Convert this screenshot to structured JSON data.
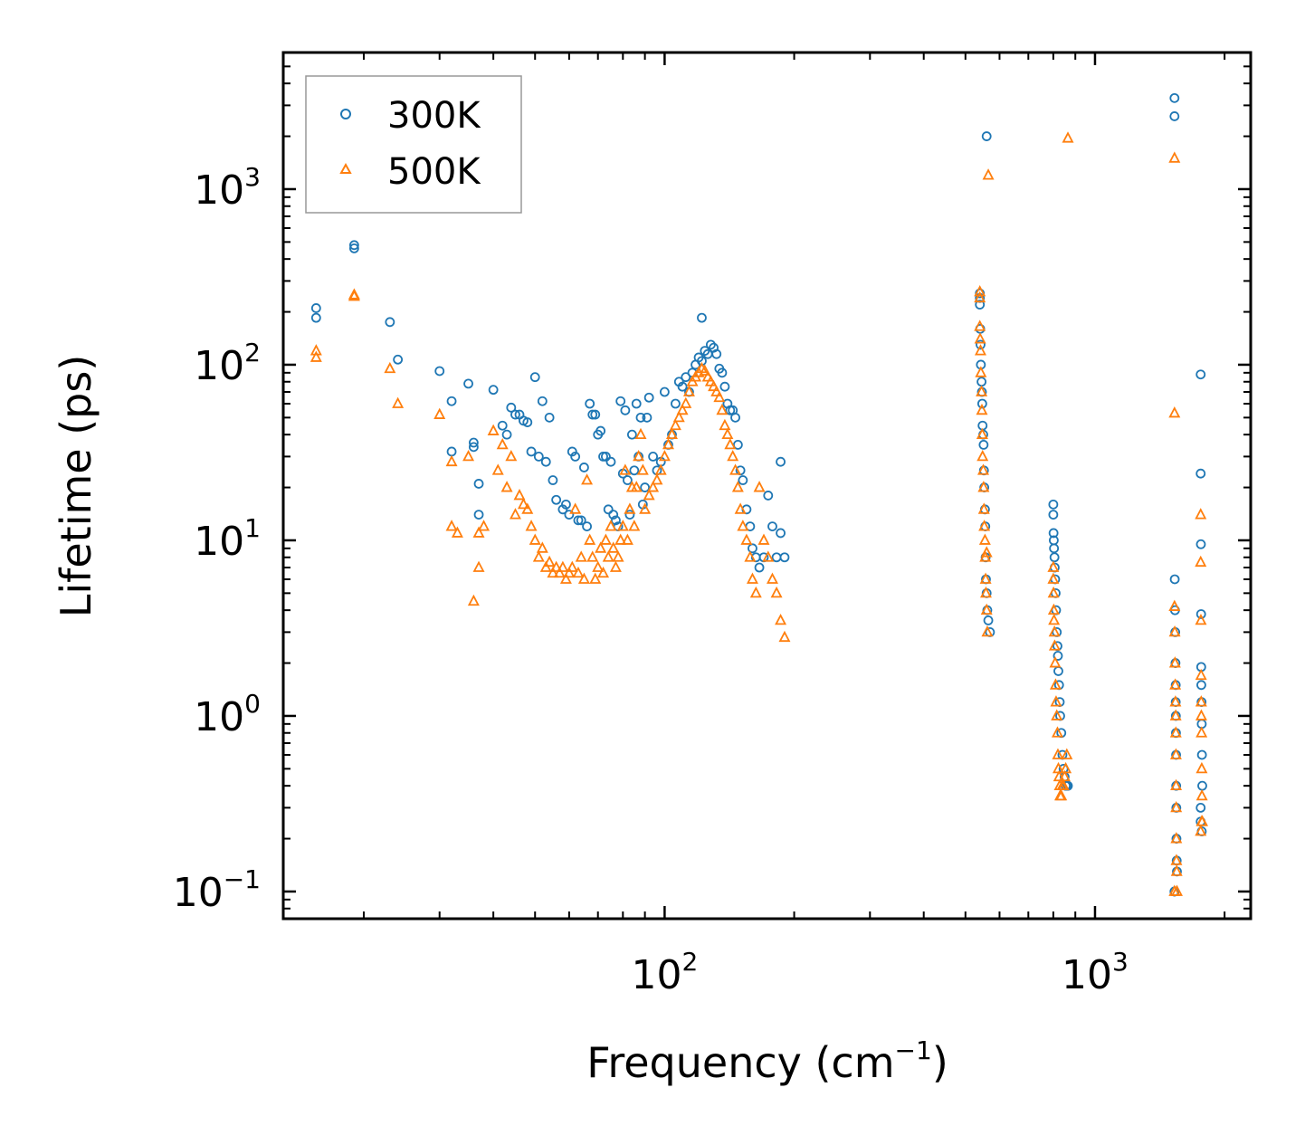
{
  "chart_data": {
    "type": "scatter",
    "xscale": "log",
    "yscale": "log",
    "xlim": [
      13,
      2300
    ],
    "ylim": [
      0.07,
      6000
    ],
    "xlabel": "Frequency (cm",
    "xlabel_sup": "−1",
    "xlabel_end": ")",
    "ylabel": "Lifetime (ps)",
    "legend_position": "top-left",
    "x_ticks": [
      {
        "value": 100,
        "base": "10",
        "exp": "2"
      },
      {
        "value": 1000,
        "base": "10",
        "exp": "3"
      }
    ],
    "y_ticks": [
      {
        "value": 0.1,
        "base": "10",
        "exp": "−1"
      },
      {
        "value": 1,
        "base": "10",
        "exp": "0"
      },
      {
        "value": 10,
        "base": "10",
        "exp": "1"
      },
      {
        "value": 100,
        "base": "10",
        "exp": "2"
      },
      {
        "value": 1000,
        "base": "10",
        "exp": "3"
      }
    ],
    "series": [
      {
        "name": "300K",
        "marker": "circle",
        "color": "#1f77b4",
        "x": [
          15.5,
          15.5,
          19,
          19,
          23,
          24,
          30,
          32,
          32,
          35,
          36,
          36,
          37,
          37,
          40,
          42,
          43,
          44,
          45,
          46,
          47,
          48,
          49,
          50,
          51,
          52,
          53,
          54,
          55,
          56,
          58,
          59,
          60,
          61,
          62,
          63,
          64,
          65,
          66,
          67,
          68,
          69,
          70,
          71,
          72,
          73,
          74,
          75,
          76,
          77,
          78,
          79,
          80,
          81,
          82,
          83,
          84,
          85,
          86,
          87,
          88,
          89,
          90,
          91,
          92,
          94,
          96,
          98,
          100,
          102,
          104,
          106,
          108,
          110,
          112,
          114,
          116,
          118,
          120,
          122,
          124,
          126,
          128,
          130,
          132,
          134,
          136,
          138,
          140,
          142,
          144,
          146,
          148,
          150,
          152,
          155,
          158,
          160,
          163,
          166,
          170,
          174,
          178,
          182,
          186,
          190,
          122,
          186,
          540,
          540,
          540,
          541,
          542,
          543,
          545,
          546,
          547,
          548,
          550,
          551,
          552,
          553,
          555,
          556,
          557,
          558,
          560,
          562,
          565,
          570,
          560,
          800,
          800,
          801,
          802,
          803,
          805,
          806,
          808,
          810,
          812,
          815,
          818,
          820,
          822,
          825,
          828,
          830,
          835,
          840,
          845,
          850,
          855,
          860,
          865,
          1530,
          1530,
          1532,
          1534,
          1536,
          1538,
          1540,
          1540,
          1541,
          1542,
          1543,
          1544,
          1545,
          1546,
          1548,
          1550,
          1530,
          1530,
          1760,
          1760,
          1762,
          1764,
          1765,
          1766,
          1768,
          1770,
          1772,
          1775,
          1760,
          1760,
          1770
        ],
        "y": [
          210,
          185,
          480,
          460,
          175,
          107,
          92,
          62,
          32,
          78,
          34,
          36,
          14,
          21,
          72,
          45,
          40,
          57,
          52,
          52,
          48,
          47,
          32,
          85,
          30,
          62,
          28,
          50,
          22,
          17,
          15,
          16,
          14,
          32,
          30,
          13,
          13,
          26,
          12,
          60,
          52,
          52,
          40,
          42,
          30,
          30,
          15,
          28,
          14,
          13,
          12,
          62,
          24,
          55,
          22,
          14,
          40,
          25,
          60,
          30,
          50,
          16,
          20,
          50,
          65,
          30,
          25,
          28,
          70,
          35,
          40,
          60,
          80,
          75,
          85,
          70,
          90,
          100,
          110,
          105,
          120,
          115,
          130,
          125,
          115,
          95,
          90,
          75,
          60,
          55,
          55,
          50,
          35,
          25,
          22,
          15,
          12,
          9,
          8,
          7,
          8,
          18,
          12,
          8,
          11,
          8,
          185,
          28,
          255,
          240,
          220,
          160,
          130,
          100,
          80,
          70,
          60,
          45,
          40,
          35,
          25,
          20,
          15,
          12,
          8,
          6,
          5,
          4,
          3.5,
          3,
          2000,
          16,
          14,
          11,
          10,
          9,
          8,
          7,
          6,
          5,
          4,
          3,
          2.5,
          2.2,
          1.8,
          1.5,
          1.2,
          1,
          0.8,
          0.6,
          0.5,
          0.45,
          0.4,
          0.4,
          0.4,
          3300,
          2600,
          6,
          4,
          3,
          2,
          1.5,
          1.2,
          1,
          0.8,
          0.6,
          0.4,
          0.3,
          0.2,
          0.15,
          0.13,
          0.1,
          0.1,
          88,
          24,
          9.5,
          3.8,
          1.9,
          1.5,
          1.2,
          0.9,
          0.6,
          0.4,
          0.3,
          0.25,
          0.22
        ]
      },
      {
        "name": "500K",
        "marker": "triangle",
        "color": "#ff7f0e",
        "x": [
          15.5,
          15.5,
          19,
          19,
          23,
          24,
          30,
          32,
          32,
          33,
          35,
          36,
          37,
          37,
          38,
          40,
          41,
          42,
          43,
          44,
          45,
          46,
          47,
          48,
          49,
          50,
          51,
          52,
          53,
          54,
          55,
          56,
          57,
          58,
          59,
          60,
          61,
          62,
          63,
          64,
          65,
          66,
          67,
          68,
          69,
          70,
          71,
          72,
          73,
          74,
          75,
          76,
          77,
          78,
          79,
          80,
          81,
          82,
          83,
          84,
          85,
          86,
          87,
          88,
          89,
          90,
          92,
          94,
          96,
          98,
          100,
          102,
          104,
          106,
          108,
          110,
          112,
          114,
          116,
          118,
          120,
          122,
          124,
          126,
          128,
          130,
          132,
          134,
          136,
          138,
          140,
          142,
          144,
          146,
          148,
          150,
          152,
          155,
          158,
          160,
          163,
          166,
          170,
          174,
          178,
          182,
          186,
          190,
          540,
          540,
          540,
          541,
          542,
          543,
          545,
          546,
          547,
          548,
          550,
          551,
          552,
          553,
          555,
          556,
          557,
          558,
          560,
          562,
          565,
          560,
          800,
          800,
          801,
          802,
          803,
          805,
          806,
          808,
          810,
          812,
          815,
          818,
          820,
          822,
          825,
          828,
          830,
          835,
          840,
          845,
          850,
          855,
          860,
          865,
          1530,
          1530,
          1532,
          1534,
          1536,
          1538,
          1540,
          1541,
          1542,
          1543,
          1544,
          1545,
          1546,
          1548,
          1550,
          1530,
          1530,
          1760,
          1760,
          1762,
          1764,
          1765,
          1766,
          1768,
          1770,
          1772,
          1775,
          1760,
          1770
        ],
        "y": [
          120,
          110,
          250,
          245,
          95,
          60,
          52,
          28,
          12,
          11,
          30,
          4.5,
          11,
          7,
          12,
          42,
          25,
          35,
          20,
          30,
          14,
          18,
          16,
          15,
          12,
          10,
          8,
          9,
          7,
          7.5,
          6.5,
          7,
          6.5,
          7,
          6,
          6.5,
          7,
          15,
          6.5,
          8,
          6,
          22,
          10,
          8,
          6,
          7,
          9,
          6.5,
          10,
          8,
          12,
          9,
          7,
          8,
          10,
          12,
          25,
          10,
          15,
          20,
          12,
          20,
          30,
          40,
          25,
          15,
          18,
          20,
          22,
          25,
          30,
          35,
          40,
          45,
          50,
          55,
          60,
          70,
          80,
          85,
          90,
          95,
          92,
          85,
          80,
          75,
          70,
          65,
          55,
          45,
          40,
          35,
          30,
          25,
          20,
          15,
          12,
          10,
          8,
          6,
          5,
          20,
          10,
          8,
          6,
          5,
          3.5,
          2.8,
          260,
          240,
          165,
          140,
          120,
          90,
          70,
          55,
          40,
          30,
          25,
          20,
          15,
          12,
          10,
          8,
          6,
          5,
          4,
          3,
          1200,
          8.5,
          7,
          6,
          5,
          4,
          3.5,
          3,
          2.5,
          2,
          1.5,
          1.2,
          1,
          0.8,
          0.6,
          0.5,
          0.45,
          0.4,
          0.35,
          0.35,
          0.4,
          0.4,
          0.45,
          0.5,
          0.6,
          1950,
          1500,
          4.2,
          3,
          2,
          1.5,
          1.2,
          1,
          0.8,
          0.6,
          0.4,
          0.3,
          0.2,
          0.15,
          0.13,
          0.1,
          0.1,
          53,
          14,
          7.5,
          3.5,
          1.7,
          1.2,
          1,
          0.8,
          0.5,
          0.35,
          0.25,
          0.22,
          0.25
        ]
      }
    ]
  }
}
